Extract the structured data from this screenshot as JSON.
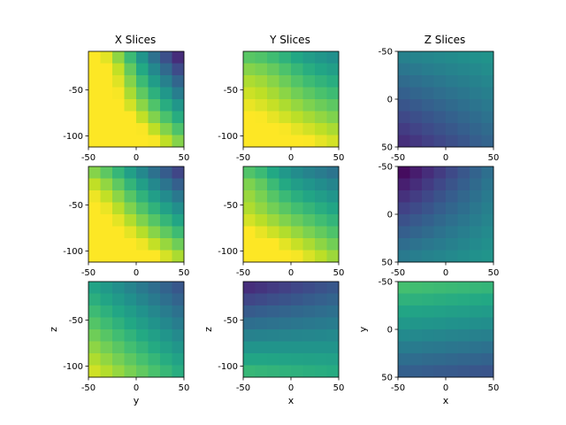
{
  "chart_data": {
    "type": "heatmap",
    "colormap": "viridis",
    "vmin": 0,
    "vmax": 1,
    "column_titles": [
      "X Slices",
      "Y Slices",
      "Z Slices"
    ],
    "grid_shape": [
      8,
      8
    ],
    "panels": [
      {
        "row": 0,
        "col": 0,
        "x_range": [
          -50,
          50
        ],
        "y_range": [
          -112,
          -8
        ],
        "y_inverted": false,
        "xticks": [
          "-50",
          "0",
          "50"
        ],
        "yticks": [
          "-50",
          "-100"
        ],
        "xlabel": "",
        "ylabel": "",
        "value_model": {
          "base": 0.82,
          "gx": -0.8,
          "gy": -0.7,
          "gxy": -0.2,
          "bump": 0.17,
          "bx": 0.2,
          "by": 0.1,
          "br": 0.25
        }
      },
      {
        "row": 0,
        "col": 1,
        "x_range": [
          -50,
          50
        ],
        "y_range": [
          -112,
          -8
        ],
        "y_inverted": false,
        "xticks": [
          "-50",
          "0",
          "50"
        ],
        "yticks": [
          "-50",
          "-100"
        ],
        "xlabel": "",
        "ylabel": "",
        "value_model": {
          "base": 0.8,
          "gx": -0.2,
          "gy": -0.55,
          "gxy": 0.1,
          "bump": 0.12,
          "bx": 0.15,
          "by": 0.15,
          "br": 0.3
        }
      },
      {
        "row": 0,
        "col": 2,
        "x_range": [
          -50,
          50
        ],
        "y_range": [
          -50,
          50
        ],
        "y_inverted": true,
        "xticks": [
          "-50",
          "0",
          "50"
        ],
        "yticks": [
          "-50",
          "0",
          "50"
        ],
        "xlabel": "",
        "ylabel": "",
        "value_model": {
          "base": 0.35,
          "gx": 0.15,
          "gy": 0.28,
          "gxy": -0.15,
          "bump": 0,
          "bx": 0.5,
          "by": 0.5,
          "br": 0.3
        }
      },
      {
        "row": 1,
        "col": 0,
        "x_range": [
          -50,
          50
        ],
        "y_range": [
          -112,
          -8
        ],
        "y_inverted": false,
        "xticks": [
          "-50",
          "0",
          "50"
        ],
        "yticks": [
          "-50",
          "-100"
        ],
        "xlabel": "",
        "ylabel": "",
        "value_model": {
          "base": 0.78,
          "gx": -0.55,
          "gy": -0.72,
          "gxy": -0.1,
          "bump": 0.1,
          "bx": 0.15,
          "by": 0.15,
          "br": 0.3
        }
      },
      {
        "row": 1,
        "col": 1,
        "x_range": [
          -50,
          50
        ],
        "y_range": [
          -112,
          -8
        ],
        "y_inverted": false,
        "xticks": [
          "-50",
          "0",
          "50"
        ],
        "yticks": [
          "-50",
          "-100"
        ],
        "xlabel": "",
        "ylabel": "",
        "value_model": {
          "base": 0.75,
          "gx": -0.3,
          "gy": -0.6,
          "gxy": 0.15,
          "bump": 0.14,
          "bx": 0.08,
          "by": 0.12,
          "br": 0.2
        }
      },
      {
        "row": 1,
        "col": 2,
        "x_range": [
          -50,
          50
        ],
        "y_range": [
          -50,
          50
        ],
        "y_inverted": true,
        "xticks": [
          "-50",
          "0",
          "50"
        ],
        "yticks": [
          "-50",
          "0",
          "50"
        ],
        "xlabel": "",
        "ylabel": "",
        "value_model": {
          "base": 0.33,
          "gx": 0.25,
          "gy": -0.3,
          "gxy": 0.3,
          "bump": 0,
          "bx": 0.5,
          "by": 0.5,
          "br": 0.3
        }
      },
      {
        "row": 2,
        "col": 0,
        "x_range": [
          -50,
          50
        ],
        "y_range": [
          -112,
          -8
        ],
        "y_inverted": false,
        "xticks": [
          "-50",
          "0",
          "50"
        ],
        "yticks": [
          "-50",
          "-100"
        ],
        "xlabel": "y",
        "ylabel": "z",
        "value_model": {
          "base": 0.6,
          "gx": -0.35,
          "gy": -0.4,
          "gxy": 0,
          "bump": 0,
          "bx": 0.5,
          "by": 0.5,
          "br": 0.3
        }
      },
      {
        "row": 2,
        "col": 1,
        "x_range": [
          -50,
          50
        ],
        "y_range": [
          -112,
          -8
        ],
        "y_inverted": false,
        "xticks": [
          "-50",
          "0",
          "50"
        ],
        "yticks": [
          "-50",
          "-100"
        ],
        "xlabel": "x",
        "ylabel": "z",
        "value_model": {
          "base": 0.42,
          "gx": 0.05,
          "gy": -0.5,
          "gxy": 0.25,
          "bump": 0,
          "bx": 0.5,
          "by": 0.5,
          "br": 0.3
        }
      },
      {
        "row": 2,
        "col": 2,
        "x_range": [
          -50,
          50
        ],
        "y_range": [
          -50,
          50
        ],
        "y_inverted": true,
        "xticks": [
          "-50",
          "0",
          "50"
        ],
        "yticks": [
          "-50",
          "0",
          "50"
        ],
        "xlabel": "x",
        "ylabel": "y",
        "value_model": {
          "base": 0.48,
          "gx": -0.05,
          "gy": 0.45,
          "gxy": 0,
          "bump": 0,
          "bx": 0.5,
          "by": 0.5,
          "br": 0.3
        }
      }
    ]
  }
}
